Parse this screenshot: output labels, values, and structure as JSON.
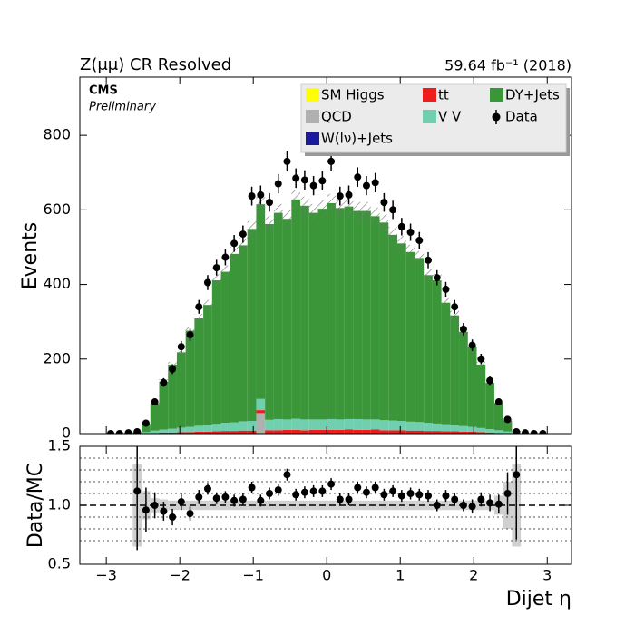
{
  "chart_data": [
    {
      "type": "stacked_histogram",
      "title": "Z(μμ) CR Resolved",
      "subtitle": "59.64 fb⁻¹ (2018)",
      "annotations": [
        "CMS",
        "Preliminary"
      ],
      "ylabel": "Events",
      "legend": "upper right",
      "bins": [
        -3.0,
        -2.88,
        -2.76,
        -2.64,
        -2.52,
        -2.4,
        -2.28,
        -2.16,
        -2.04,
        -1.92,
        -1.8,
        -1.68,
        -1.56,
        -1.44,
        -1.32,
        -1.2,
        -1.08,
        -0.96,
        -0.84,
        -0.72,
        -0.6,
        -0.48,
        -0.36,
        -0.24,
        -0.12,
        0,
        0.12,
        0.24,
        0.36,
        0.48,
        0.6,
        0.72,
        0.84,
        0.96,
        1.08,
        1.2,
        1.32,
        1.44,
        1.56,
        1.68,
        1.8,
        1.92,
        2.04,
        2.16,
        2.28,
        2.4,
        2.52,
        2.64,
        2.76,
        2.88,
        3.0
      ],
      "xlim": [
        -3.36,
        3.33
      ],
      "ylim": [
        0,
        956
      ],
      "yticks": [
        0,
        200,
        400,
        600,
        800
      ],
      "series": [
        {
          "name": "SM Higgs",
          "color": "#ffff00",
          "values": [
            0,
            0,
            0,
            0,
            0,
            0,
            0,
            0,
            0,
            0,
            0,
            0,
            0,
            0,
            0,
            0,
            0,
            0,
            0,
            0,
            0,
            0,
            0,
            0,
            0,
            0,
            0,
            0,
            0,
            0,
            0,
            0,
            0,
            0,
            0,
            0,
            0,
            0,
            0,
            0,
            0,
            0,
            0,
            0,
            0,
            0,
            0,
            0,
            0,
            0
          ]
        },
        {
          "name": "QCD",
          "color": "#b0b0b0",
          "values": [
            0,
            0,
            0,
            0,
            0,
            0,
            0,
            0,
            0,
            0,
            0,
            0,
            0,
            0,
            0,
            0,
            0,
            55,
            0,
            0,
            0,
            0,
            0,
            0,
            0,
            0,
            0,
            0,
            0,
            0,
            0,
            0,
            0,
            0,
            0,
            0,
            0,
            0,
            0,
            0,
            0,
            0,
            0,
            0,
            0,
            0,
            0,
            0,
            0,
            0
          ]
        },
        {
          "name": "W(lν)+Jets",
          "color": "#1a1a9a",
          "values": [
            0,
            0,
            0,
            0,
            0,
            0,
            0,
            0,
            0,
            0,
            0,
            0,
            0,
            0,
            0,
            0,
            0,
            0,
            0,
            0,
            0,
            0,
            0,
            0,
            0,
            0,
            0,
            0,
            0,
            0,
            0,
            0,
            0,
            0,
            0,
            0,
            0,
            0,
            0,
            0,
            0,
            0,
            0,
            0,
            0,
            0,
            0,
            0,
            0,
            0
          ]
        },
        {
          "name": "tt",
          "color": "#ee1c1c",
          "values": [
            0,
            0,
            0,
            0,
            1,
            2,
            3,
            3,
            4,
            4,
            5,
            5,
            6,
            7,
            7,
            8,
            8,
            8,
            9,
            9,
            10,
            10,
            9,
            10,
            10,
            10,
            10,
            11,
            10,
            10,
            11,
            9,
            9,
            9,
            8,
            8,
            7,
            7,
            6,
            6,
            5,
            5,
            4,
            3,
            2,
            1,
            1,
            0,
            0,
            0
          ]
        },
        {
          "name": "V V",
          "color": "#6fcfaf",
          "values": [
            0,
            0,
            0,
            1,
            3,
            6,
            8,
            10,
            12,
            14,
            16,
            18,
            20,
            22,
            23,
            25,
            26,
            30,
            28,
            30,
            28,
            30,
            29,
            28,
            28,
            29,
            28,
            28,
            29,
            28,
            27,
            27,
            26,
            25,
            24,
            23,
            22,
            20,
            19,
            17,
            15,
            13,
            11,
            9,
            7,
            5,
            3,
            1,
            0,
            0
          ]
        },
        {
          "name": "DY+Jets",
          "color": "#3a9639",
          "values": [
            0,
            0,
            0,
            3,
            22,
            72,
            128,
            172,
            202,
            258,
            288,
            322,
            385,
            405,
            452,
            472,
            515,
            522,
            525,
            553,
            538,
            588,
            573,
            554,
            565,
            579,
            567,
            570,
            558,
            559,
            545,
            530,
            498,
            476,
            455,
            440,
            396,
            384,
            326,
            294,
            253,
            215,
            170,
            124,
            73,
            28,
            3,
            0,
            0,
            0
          ]
        }
      ],
      "data": {
        "name": "Data",
        "color": "#000000",
        "values": [
          0,
          0,
          2,
          5,
          28,
          85,
          137,
          173,
          233,
          265,
          340,
          405,
          445,
          473,
          510,
          535,
          637,
          640,
          620,
          670,
          730,
          685,
          680,
          665,
          678,
          730,
          637,
          640,
          688,
          665,
          673,
          620,
          600,
          555,
          540,
          518,
          465,
          418,
          387,
          340,
          280,
          237,
          200,
          142,
          85,
          38,
          5,
          2,
          0,
          0
        ],
        "errors": [
          0,
          0,
          1.4,
          2.2,
          5.3,
          9.2,
          11.7,
          13.2,
          15.3,
          16.3,
          18.4,
          20.1,
          21.1,
          21.7,
          22.6,
          23.1,
          25.2,
          25.3,
          24.9,
          25.9,
          27.0,
          26.2,
          26.1,
          25.8,
          26.0,
          27.0,
          25.2,
          25.3,
          26.2,
          25.8,
          25.9,
          24.9,
          24.5,
          23.6,
          23.2,
          22.8,
          21.6,
          20.4,
          19.7,
          18.4,
          16.7,
          15.4,
          14.1,
          11.9,
          9.2,
          6.2,
          2.2,
          1.4,
          0,
          0
        ]
      }
    },
    {
      "type": "ratio",
      "ylabel": "Data/MC",
      "xlabel": "Dijet η",
      "xlim": [
        -3.36,
        3.33
      ],
      "xticks": [
        {
          "value": -3,
          "label": "−3"
        },
        {
          "value": -2,
          "label": "−2"
        },
        {
          "value": -1,
          "label": "−1"
        },
        0,
        1,
        2,
        3
      ],
      "ylim": [
        0.5,
        1.5
      ],
      "yticks": [
        0.5,
        {
          "value": 1,
          "label": "1.0"
        },
        1.5
      ],
      "grid_lines": [
        0.7,
        0.8,
        0.9,
        1.1,
        1.2,
        1.3,
        1.4
      ],
      "reference_line": 1,
      "values": [
        null,
        null,
        null,
        1.12,
        0.96,
        1.0,
        0.95,
        0.9,
        1.03,
        0.93,
        1.07,
        1.14,
        1.06,
        1.07,
        1.04,
        1.05,
        1.15,
        1.04,
        1.1,
        1.13,
        1.26,
        1.09,
        1.11,
        1.12,
        1.12,
        1.18,
        1.05,
        1.05,
        1.15,
        1.11,
        1.15,
        1.09,
        1.12,
        1.08,
        1.1,
        1.09,
        1.08,
        1.0,
        1.08,
        1.05,
        1.0,
        0.99,
        1.05,
        1.02,
        1.01,
        1.1,
        1.26,
        null,
        null,
        null
      ],
      "errors": [
        null,
        null,
        null,
        0.5,
        0.19,
        0.11,
        0.08,
        0.07,
        0.07,
        0.06,
        0.06,
        0.05,
        0.05,
        0.05,
        0.05,
        0.05,
        0.05,
        0.05,
        0.05,
        0.05,
        0.05,
        0.05,
        0.05,
        0.05,
        0.05,
        0.05,
        0.05,
        0.05,
        0.05,
        0.05,
        0.05,
        0.05,
        0.05,
        0.05,
        0.05,
        0.05,
        0.05,
        0.05,
        0.05,
        0.05,
        0.05,
        0.06,
        0.06,
        0.07,
        0.08,
        0.18,
        0.55,
        null,
        null,
        null
      ],
      "band": [
        null,
        null,
        null,
        0.35,
        0.12,
        0.06,
        0.05,
        0.04,
        0.04,
        0.04,
        0.04,
        0.04,
        0.04,
        0.04,
        0.04,
        0.04,
        0.04,
        0.04,
        0.04,
        0.04,
        0.04,
        0.04,
        0.04,
        0.04,
        0.04,
        0.04,
        0.04,
        0.04,
        0.04,
        0.04,
        0.04,
        0.04,
        0.04,
        0.04,
        0.04,
        0.04,
        0.04,
        0.04,
        0.04,
        0.04,
        0.04,
        0.04,
        0.04,
        0.04,
        0.08,
        0.2,
        0.35,
        null,
        null,
        null
      ]
    }
  ]
}
